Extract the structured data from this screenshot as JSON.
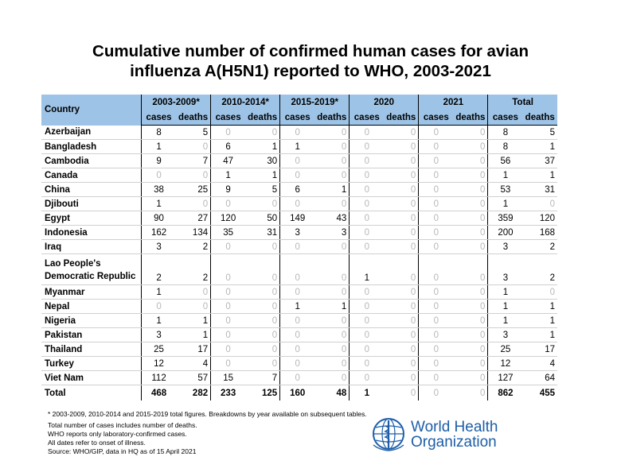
{
  "title_line1": "Cumulative number of confirmed human cases for avian",
  "title_line2": "influenza A(H5N1) reported to WHO, 2003-2021",
  "header": {
    "country": "Country",
    "periods": [
      "2003-2009*",
      "2010-2014*",
      "2015-2019*",
      "2020",
      "2021",
      "Total"
    ],
    "cases": "cases",
    "deaths": "deaths"
  },
  "rows": [
    {
      "country": "Azerbaijan",
      "values": [
        "8",
        "5",
        "0",
        "0",
        "0",
        "0",
        "0",
        "0",
        "0",
        "0",
        "8",
        "5"
      ]
    },
    {
      "country": "Bangladesh",
      "values": [
        "1",
        "0",
        "6",
        "1",
        "1",
        "0",
        "0",
        "0",
        "0",
        "0",
        "8",
        "1"
      ]
    },
    {
      "country": "Cambodia",
      "values": [
        "9",
        "7",
        "47",
        "30",
        "0",
        "0",
        "0",
        "0",
        "0",
        "0",
        "56",
        "37"
      ]
    },
    {
      "country": "Canada",
      "values": [
        "0",
        "0",
        "1",
        "1",
        "0",
        "0",
        "0",
        "0",
        "0",
        "0",
        "1",
        "1"
      ]
    },
    {
      "country": "China",
      "values": [
        "38",
        "25",
        "9",
        "5",
        "6",
        "1",
        "0",
        "0",
        "0",
        "0",
        "53",
        "31"
      ]
    },
    {
      "country": "Djibouti",
      "values": [
        "1",
        "0",
        "0",
        "0",
        "0",
        "0",
        "0",
        "0",
        "0",
        "0",
        "1",
        "0"
      ]
    },
    {
      "country": "Egypt",
      "values": [
        "90",
        "27",
        "120",
        "50",
        "149",
        "43",
        "0",
        "0",
        "0",
        "0",
        "359",
        "120"
      ]
    },
    {
      "country": "Indonesia",
      "values": [
        "162",
        "134",
        "35",
        "31",
        "3",
        "3",
        "0",
        "0",
        "0",
        "0",
        "200",
        "168"
      ]
    },
    {
      "country": "Iraq",
      "values": [
        "3",
        "2",
        "0",
        "0",
        "0",
        "0",
        "0",
        "0",
        "0",
        "0",
        "3",
        "2"
      ]
    },
    {
      "country": "Lao People's Democratic Republic",
      "country_line1": "Lao People's",
      "country_line2": "Democratic Republic",
      "values": [
        "2",
        "2",
        "0",
        "0",
        "0",
        "0",
        "1",
        "0",
        "0",
        "0",
        "3",
        "2"
      ]
    },
    {
      "country": "Myanmar",
      "values": [
        "1",
        "0",
        "0",
        "0",
        "0",
        "0",
        "0",
        "0",
        "0",
        "0",
        "1",
        "0"
      ]
    },
    {
      "country": "Nepal",
      "values": [
        "0",
        "0",
        "0",
        "0",
        "1",
        "1",
        "0",
        "0",
        "0",
        "0",
        "1",
        "1"
      ]
    },
    {
      "country": "Nigeria",
      "values": [
        "1",
        "1",
        "0",
        "0",
        "0",
        "0",
        "0",
        "0",
        "0",
        "0",
        "1",
        "1"
      ]
    },
    {
      "country": "Pakistan",
      "values": [
        "3",
        "1",
        "0",
        "0",
        "0",
        "0",
        "0",
        "0",
        "0",
        "0",
        "3",
        "1"
      ]
    },
    {
      "country": "Thailand",
      "values": [
        "25",
        "17",
        "0",
        "0",
        "0",
        "0",
        "0",
        "0",
        "0",
        "0",
        "25",
        "17"
      ]
    },
    {
      "country": "Turkey",
      "values": [
        "12",
        "4",
        "0",
        "0",
        "0",
        "0",
        "0",
        "0",
        "0",
        "0",
        "12",
        "4"
      ]
    },
    {
      "country": "Viet Nam",
      "values": [
        "112",
        "57",
        "15",
        "7",
        "0",
        "0",
        "0",
        "0",
        "0",
        "0",
        "127",
        "64"
      ]
    }
  ],
  "total": {
    "country": "Total",
    "values": [
      "468",
      "282",
      "233",
      "125",
      "160",
      "48",
      "1",
      "0",
      "0",
      "0",
      "862",
      "455"
    ]
  },
  "footnote": "* 2003-2009, 2010-2014 and 2015-2019 total figures. Breakdowns by year available on subsequent tables.",
  "notes": [
    "Total number of cases includes number of deaths.",
    "WHO reports only laboratory-confirmed cases.",
    "All dates refer to onset of illness.",
    "Source: WHO/GIP, data in HQ as of 15 April 2021"
  ],
  "logo": {
    "line1": "World Health",
    "line2": "Organization",
    "color": "#1e5ea8",
    "icon": "who-emblem-icon"
  }
}
